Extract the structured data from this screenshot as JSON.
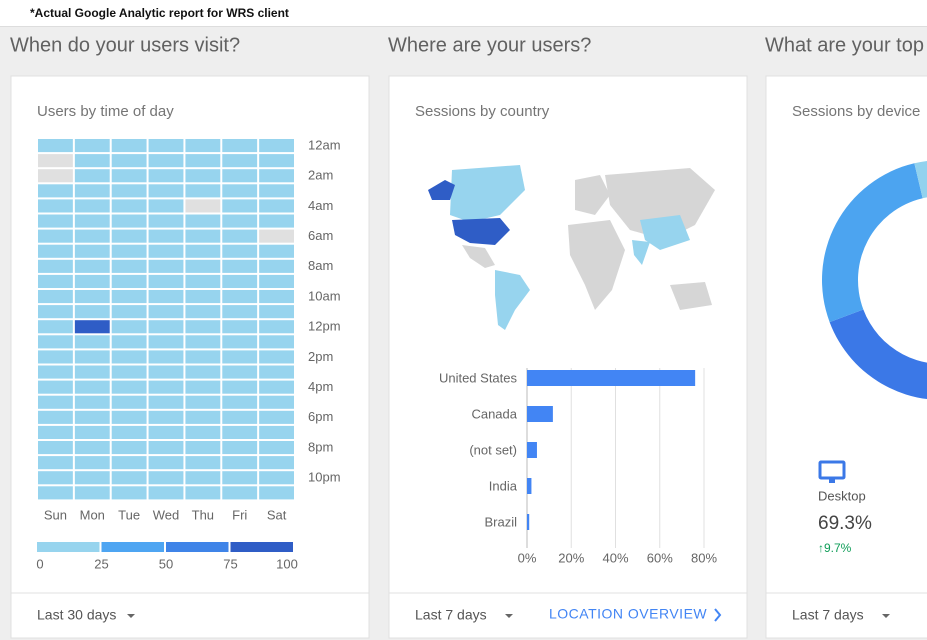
{
  "note": "*Actual Google Analytic report for WRS client",
  "cards": [
    {
      "heading": "When do your users visit?",
      "title": "Users by time of day",
      "footer": "Last 30 days",
      "chart_data": {
        "type": "heatmap",
        "x": [
          "Sun",
          "Mon",
          "Tue",
          "Wed",
          "Thu",
          "Fri",
          "Sat"
        ],
        "y": [
          "12am",
          null,
          "2am",
          null,
          "4am",
          null,
          "6am",
          null,
          "8am",
          null,
          "10am",
          null,
          "12pm",
          null,
          "2pm",
          null,
          "4pm",
          null,
          "6pm",
          null,
          "8pm",
          null,
          "10pm",
          null
        ],
        "values": [
          [
            10,
            10,
            10,
            10,
            10,
            10,
            10
          ],
          [
            0,
            10,
            10,
            10,
            10,
            10,
            10
          ],
          [
            0,
            10,
            10,
            10,
            10,
            10,
            10
          ],
          [
            10,
            10,
            10,
            10,
            10,
            10,
            10
          ],
          [
            10,
            10,
            10,
            10,
            0,
            10,
            10
          ],
          [
            10,
            10,
            10,
            10,
            10,
            10,
            10
          ],
          [
            10,
            10,
            10,
            10,
            10,
            10,
            0
          ],
          [
            10,
            10,
            10,
            10,
            10,
            10,
            10
          ],
          [
            10,
            10,
            10,
            10,
            10,
            10,
            10
          ],
          [
            10,
            10,
            10,
            10,
            10,
            10,
            10
          ],
          [
            10,
            10,
            10,
            10,
            10,
            10,
            10
          ],
          [
            10,
            10,
            10,
            10,
            10,
            10,
            10
          ],
          [
            10,
            90,
            10,
            10,
            10,
            10,
            10
          ],
          [
            10,
            10,
            10,
            10,
            10,
            10,
            10
          ],
          [
            10,
            10,
            10,
            10,
            10,
            10,
            10
          ],
          [
            10,
            10,
            10,
            10,
            10,
            10,
            10
          ],
          [
            10,
            10,
            10,
            10,
            10,
            10,
            10
          ],
          [
            10,
            10,
            10,
            10,
            10,
            10,
            10
          ],
          [
            10,
            10,
            10,
            10,
            10,
            10,
            10
          ],
          [
            10,
            10,
            10,
            10,
            10,
            10,
            10
          ],
          [
            10,
            10,
            10,
            10,
            10,
            10,
            10
          ],
          [
            10,
            10,
            10,
            10,
            10,
            10,
            10
          ],
          [
            10,
            10,
            10,
            10,
            10,
            10,
            10
          ],
          [
            10,
            10,
            10,
            10,
            10,
            10,
            10
          ]
        ],
        "colors": [
          "#97d4ee",
          "#4ea5f2",
          "#3f84e8",
          "#2f5dc6"
        ],
        "zero_color": "#e0e0e0",
        "legend_ticks": [
          0,
          25,
          50,
          75,
          100
        ]
      }
    },
    {
      "heading": "Where are your users?",
      "title": "Sessions by country",
      "footer": "Last 7 days",
      "link": "LOCATION OVERVIEW",
      "chart_data": {
        "type": "bar",
        "orientation": "horizontal",
        "categories": [
          "United States",
          "Canada",
          "(not set)",
          "India",
          "Brazil"
        ],
        "values": [
          76,
          11.7,
          4.5,
          2,
          1
        ],
        "color": "#4285f4",
        "xlim": [
          0,
          80
        ],
        "xticks": [
          {
            "value": 0,
            "label": "0%"
          },
          {
            "value": 20,
            "label": "20%"
          },
          {
            "value": 40,
            "label": "40%"
          },
          {
            "value": 60,
            "label": "60%"
          },
          {
            "value": 80,
            "label": "80%"
          }
        ],
        "grid": true
      }
    },
    {
      "heading": "What are your top",
      "title": "Sessions by device",
      "footer": "Last 7 days",
      "chart_data": {
        "type": "donut",
        "series": [
          {
            "name": "Desktop",
            "color": "#3b78e7",
            "value": 69.3,
            "value_label": "69.3%",
            "change": "↑9.7%"
          },
          {
            "name": null,
            "color": "#4ca4f0",
            "value": 27,
            "value_label": null,
            "change": null
          },
          {
            "name": null,
            "color": "#92d2ee",
            "value": 3.7,
            "value_label": null,
            "change": null
          }
        ]
      }
    }
  ]
}
